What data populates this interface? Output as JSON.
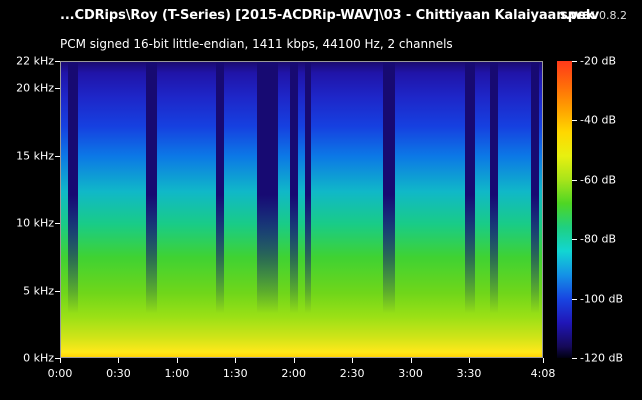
{
  "header": {
    "file_title": "...CDRips\\Roy (T-Series) [2015-ACDRip-WAV]\\03 - Chittiyaan Kalaiyaan.wav",
    "app_name": "spek",
    "app_version": "0.8.2",
    "stream_info": "PCM signed 16-bit little-endian, 1411 kbps, 44100 Hz, 2 channels"
  },
  "axes": {
    "frequency": {
      "ticks": [
        {
          "value": 22,
          "label": "22 kHz"
        },
        {
          "value": 20,
          "label": "20 kHz"
        },
        {
          "value": 15,
          "label": "15 kHz"
        },
        {
          "value": 10,
          "label": "10 kHz"
        },
        {
          "value": 5,
          "label": "5 kHz"
        },
        {
          "value": 0,
          "label": "0 kHz"
        }
      ],
      "max": 22
    },
    "time": {
      "ticks": [
        {
          "seconds": 0,
          "label": "0:00"
        },
        {
          "seconds": 30,
          "label": "0:30"
        },
        {
          "seconds": 60,
          "label": "1:00"
        },
        {
          "seconds": 90,
          "label": "1:30"
        },
        {
          "seconds": 120,
          "label": "2:00"
        },
        {
          "seconds": 150,
          "label": "2:30"
        },
        {
          "seconds": 180,
          "label": "3:00"
        },
        {
          "seconds": 210,
          "label": "3:30"
        },
        {
          "seconds": 248,
          "label": "4:08"
        }
      ],
      "max_seconds": 248
    },
    "level": {
      "ticks": [
        {
          "value": -20,
          "label": "-20 dB"
        },
        {
          "value": -40,
          "label": "-40 dB"
        },
        {
          "value": -60,
          "label": "-60 dB"
        },
        {
          "value": -80,
          "label": "-80 dB"
        },
        {
          "value": -100,
          "label": "-100 dB"
        },
        {
          "value": -120,
          "label": "-120 dB"
        }
      ],
      "max": -20,
      "min": -120
    }
  },
  "quiet_segments_seconds": [
    [
      4,
      9
    ],
    [
      44,
      50
    ],
    [
      80,
      84
    ],
    [
      101,
      112
    ],
    [
      118,
      122
    ],
    [
      126,
      129
    ],
    [
      166,
      172
    ],
    [
      208,
      213
    ],
    [
      221,
      225
    ],
    [
      242,
      246
    ]
  ],
  "colors": {
    "background": "#000000",
    "text": "#ffffff",
    "frame": "#9a9a9a",
    "quiet_band": "#170a72"
  }
}
